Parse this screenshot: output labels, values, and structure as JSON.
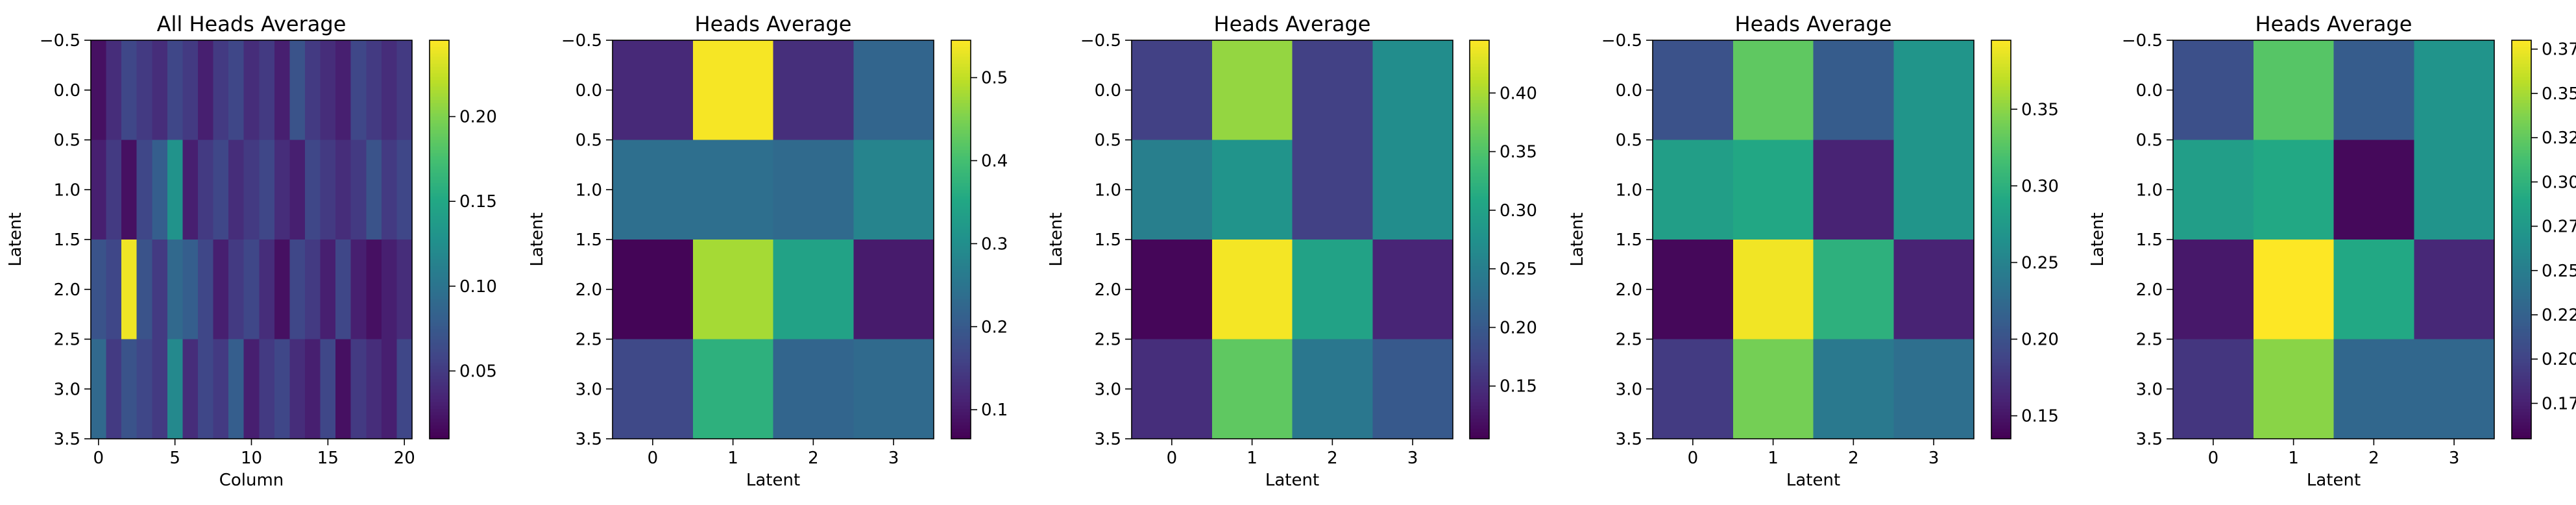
{
  "figure": {
    "background": "#ffffff",
    "colormap": "viridis"
  },
  "chart_data": [
    {
      "type": "heatmap",
      "title": "All Heads Average",
      "xlabel": "Column",
      "ylabel": "Latent",
      "rows": 4,
      "cols": 21,
      "x_ticks": [
        0,
        5,
        10,
        15,
        20
      ],
      "x_tick_labels": [
        "0",
        "5",
        "10",
        "15",
        "20"
      ],
      "y_ticks": [
        -0.5,
        0.0,
        0.5,
        1.0,
        1.5,
        2.0,
        2.5,
        3.0,
        3.5
      ],
      "y_tick_labels": [
        "−0.5",
        "0.0",
        "0.5",
        "1.0",
        "1.5",
        "2.0",
        "2.5",
        "3.0",
        "3.5"
      ],
      "vmin": 0.01,
      "vmax": 0.245,
      "colorbar_ticks": [
        0.05,
        0.1,
        0.15,
        0.2
      ],
      "colorbar_tick_labels": [
        "0.05",
        "0.10",
        "0.15",
        "0.20"
      ],
      "values": [
        [
          0.02,
          0.04,
          0.06,
          0.05,
          0.04,
          0.06,
          0.05,
          0.03,
          0.05,
          0.06,
          0.04,
          0.05,
          0.03,
          0.07,
          0.05,
          0.04,
          0.03,
          0.06,
          0.05,
          0.04,
          0.05
        ],
        [
          0.03,
          0.05,
          0.02,
          0.06,
          0.08,
          0.13,
          0.03,
          0.05,
          0.06,
          0.04,
          0.05,
          0.06,
          0.04,
          0.03,
          0.06,
          0.05,
          0.04,
          0.05,
          0.07,
          0.05,
          0.06
        ],
        [
          0.07,
          0.06,
          0.24,
          0.07,
          0.05,
          0.09,
          0.08,
          0.06,
          0.03,
          0.05,
          0.06,
          0.04,
          0.02,
          0.06,
          0.05,
          0.03,
          0.06,
          0.03,
          0.02,
          0.03,
          0.04
        ],
        [
          0.09,
          0.05,
          0.07,
          0.06,
          0.05,
          0.12,
          0.04,
          0.06,
          0.05,
          0.08,
          0.03,
          0.05,
          0.06,
          0.04,
          0.03,
          0.06,
          0.02,
          0.05,
          0.04,
          0.03,
          0.06
        ]
      ]
    },
    {
      "type": "heatmap",
      "title": "Heads Average",
      "xlabel": "Latent",
      "ylabel": "Latent",
      "rows": 4,
      "cols": 4,
      "x_ticks": [
        0,
        1,
        2,
        3
      ],
      "x_tick_labels": [
        "0",
        "1",
        "2",
        "3"
      ],
      "y_ticks": [
        -0.5,
        0.0,
        0.5,
        1.0,
        1.5,
        2.0,
        2.5,
        3.0,
        3.5
      ],
      "y_tick_labels": [
        "−0.5",
        "0.0",
        "0.5",
        "1.0",
        "1.5",
        "2.0",
        "2.5",
        "3.0",
        "3.5"
      ],
      "vmin": 0.065,
      "vmax": 0.545,
      "colorbar_ticks": [
        0.1,
        0.2,
        0.3,
        0.4,
        0.5
      ],
      "colorbar_tick_labels": [
        "0.1",
        "0.2",
        "0.3",
        "0.4",
        "0.5"
      ],
      "values": [
        [
          0.12,
          0.54,
          0.13,
          0.22
        ],
        [
          0.24,
          0.24,
          0.23,
          0.28
        ],
        [
          0.07,
          0.48,
          0.34,
          0.1
        ],
        [
          0.17,
          0.37,
          0.22,
          0.23
        ]
      ]
    },
    {
      "type": "heatmap",
      "title": "Heads Average",
      "xlabel": "Latent",
      "ylabel": "Latent",
      "rows": 4,
      "cols": 4,
      "x_ticks": [
        0,
        1,
        2,
        3
      ],
      "x_tick_labels": [
        "0",
        "1",
        "2",
        "3"
      ],
      "y_ticks": [
        -0.5,
        0.0,
        0.5,
        1.0,
        1.5,
        2.0,
        2.5,
        3.0,
        3.5
      ],
      "y_tick_labels": [
        "−0.5",
        "0.0",
        "0.5",
        "1.0",
        "1.5",
        "2.0",
        "2.5",
        "3.0",
        "3.5"
      ],
      "vmin": 0.105,
      "vmax": 0.445,
      "colorbar_ticks": [
        0.15,
        0.2,
        0.25,
        0.3,
        0.35,
        0.4
      ],
      "colorbar_tick_labels": [
        "0.15",
        "0.20",
        "0.25",
        "0.30",
        "0.35",
        "0.40"
      ],
      "values": [
        [
          0.17,
          0.39,
          0.17,
          0.27
        ],
        [
          0.25,
          0.28,
          0.17,
          0.27
        ],
        [
          0.11,
          0.44,
          0.3,
          0.14
        ],
        [
          0.15,
          0.36,
          0.24,
          0.2
        ]
      ]
    },
    {
      "type": "heatmap",
      "title": "Heads Average",
      "xlabel": "Latent",
      "ylabel": "Latent",
      "rows": 4,
      "cols": 4,
      "x_ticks": [
        0,
        1,
        2,
        3
      ],
      "x_tick_labels": [
        "0",
        "1",
        "2",
        "3"
      ],
      "y_ticks": [
        -0.5,
        0.0,
        0.5,
        1.0,
        1.5,
        2.0,
        2.5,
        3.0,
        3.5
      ],
      "y_tick_labels": [
        "−0.5",
        "0.0",
        "0.5",
        "1.0",
        "1.5",
        "2.0",
        "2.5",
        "3.0",
        "3.5"
      ],
      "vmin": 0.135,
      "vmax": 0.395,
      "colorbar_ticks": [
        0.15,
        0.2,
        0.25,
        0.3,
        0.35
      ],
      "colorbar_tick_labels": [
        "0.15",
        "0.20",
        "0.25",
        "0.30",
        "0.35"
      ],
      "values": [
        [
          0.2,
          0.33,
          0.21,
          0.27
        ],
        [
          0.28,
          0.29,
          0.16,
          0.27
        ],
        [
          0.14,
          0.39,
          0.3,
          0.16
        ],
        [
          0.18,
          0.34,
          0.24,
          0.23
        ]
      ]
    },
    {
      "type": "heatmap",
      "title": "Heads Average",
      "xlabel": "Latent",
      "ylabel": "Latent",
      "rows": 4,
      "cols": 4,
      "x_ticks": [
        0,
        1,
        2,
        3
      ],
      "x_tick_labels": [
        "0",
        "1",
        "2",
        "3"
      ],
      "y_ticks": [
        -0.5,
        0.0,
        0.5,
        1.0,
        1.5,
        2.0,
        2.5,
        3.0,
        3.5
      ],
      "y_tick_labels": [
        "−0.5",
        "0.0",
        "0.5",
        "1.0",
        "1.5",
        "2.0",
        "2.5",
        "3.0",
        "3.5"
      ],
      "vmin": 0.155,
      "vmax": 0.38,
      "colorbar_ticks": [
        0.175,
        0.2,
        0.225,
        0.25,
        0.275,
        0.3,
        0.325,
        0.35,
        0.375
      ],
      "colorbar_tick_labels": [
        "0.175",
        "0.200",
        "0.225",
        "0.250",
        "0.275",
        "0.300",
        "0.325",
        "0.350",
        "0.375"
      ],
      "values": [
        [
          0.21,
          0.32,
          0.22,
          0.27
        ],
        [
          0.28,
          0.29,
          0.16,
          0.27
        ],
        [
          0.17,
          0.38,
          0.29,
          0.18
        ],
        [
          0.19,
          0.34,
          0.23,
          0.23
        ]
      ]
    }
  ]
}
